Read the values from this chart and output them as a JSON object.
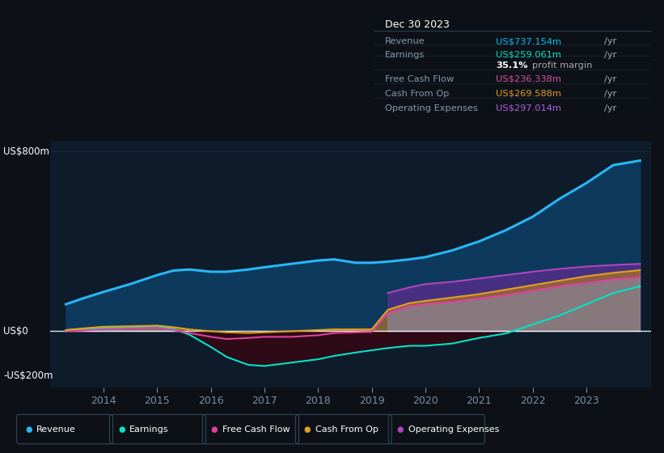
{
  "bg_color": "#0d1117",
  "plot_bg_color": "#0d1b2a",
  "title_box": {
    "date": "Dec 30 2023",
    "rows": [
      {
        "label": "Revenue",
        "value": "US$737.154m",
        "unit": "/yr",
        "color": "#00bfff"
      },
      {
        "label": "Earnings",
        "value": "US$259.061m",
        "unit": "/yr",
        "color": "#00e5c8"
      },
      {
        "label": "",
        "value": "35.1%",
        "unit": " profit margin",
        "color": "#ffffff"
      },
      {
        "label": "Free Cash Flow",
        "value": "US$236.338m",
        "unit": "/yr",
        "color": "#e050a0"
      },
      {
        "label": "Cash From Op",
        "value": "US$269.588m",
        "unit": "/yr",
        "color": "#e0a020"
      },
      {
        "label": "Operating Expenses",
        "value": "US$297.014m",
        "unit": "/yr",
        "color": "#b060e0"
      }
    ]
  },
  "years": [
    2013.3,
    2013.6,
    2014.0,
    2014.5,
    2015.0,
    2015.3,
    2015.6,
    2016.0,
    2016.3,
    2016.7,
    2017.0,
    2017.5,
    2018.0,
    2018.3,
    2018.7,
    2019.0,
    2019.3,
    2019.7,
    2020.0,
    2020.5,
    2021.0,
    2021.5,
    2022.0,
    2022.5,
    2023.0,
    2023.5,
    2024.0
  ],
  "revenue": [
    120,
    145,
    175,
    210,
    250,
    270,
    275,
    265,
    265,
    275,
    285,
    300,
    315,
    320,
    305,
    305,
    310,
    320,
    330,
    360,
    400,
    450,
    510,
    590,
    660,
    740,
    760
  ],
  "earnings": [
    5,
    10,
    12,
    18,
    22,
    10,
    -15,
    -70,
    -115,
    -150,
    -155,
    -140,
    -125,
    -110,
    -95,
    -85,
    -75,
    -65,
    -65,
    -55,
    -30,
    -10,
    30,
    70,
    120,
    170,
    200
  ],
  "free_cash_flow": [
    0,
    3,
    8,
    12,
    15,
    5,
    -8,
    -25,
    -35,
    -30,
    -25,
    -25,
    -18,
    -8,
    -5,
    -3,
    80,
    110,
    120,
    130,
    145,
    160,
    180,
    200,
    215,
    230,
    240
  ],
  "cash_from_op": [
    5,
    12,
    20,
    22,
    25,
    18,
    8,
    0,
    -5,
    -8,
    -5,
    0,
    5,
    8,
    8,
    8,
    95,
    125,
    135,
    150,
    165,
    185,
    205,
    225,
    245,
    260,
    272
  ],
  "op_expenses": [
    0,
    0,
    0,
    0,
    0,
    0,
    0,
    0,
    0,
    0,
    0,
    0,
    0,
    0,
    0,
    0,
    170,
    195,
    210,
    220,
    235,
    250,
    265,
    278,
    288,
    295,
    300
  ],
  "line_colors": {
    "revenue": "#29b6f6",
    "earnings": "#00e5c8",
    "free_cash_flow": "#e040a0",
    "cash_from_op": "#e0a020",
    "op_expenses": "#ab47bc"
  },
  "legend": [
    {
      "label": "Revenue",
      "color": "#29b6f6"
    },
    {
      "label": "Earnings",
      "color": "#00e5c8"
    },
    {
      "label": "Free Cash Flow",
      "color": "#e040a0"
    },
    {
      "label": "Cash From Op",
      "color": "#e0a020"
    },
    {
      "label": "Operating Expenses",
      "color": "#ab47bc"
    }
  ],
  "xlim": [
    2013.0,
    2024.2
  ],
  "ylim": [
    -250,
    850
  ],
  "xticks": [
    2014,
    2015,
    2016,
    2017,
    2018,
    2019,
    2020,
    2021,
    2022,
    2023
  ],
  "ytick_vals": [
    800,
    0,
    -200
  ],
  "ytick_labels": [
    "US$800m",
    "US$0",
    "-US$200m"
  ]
}
